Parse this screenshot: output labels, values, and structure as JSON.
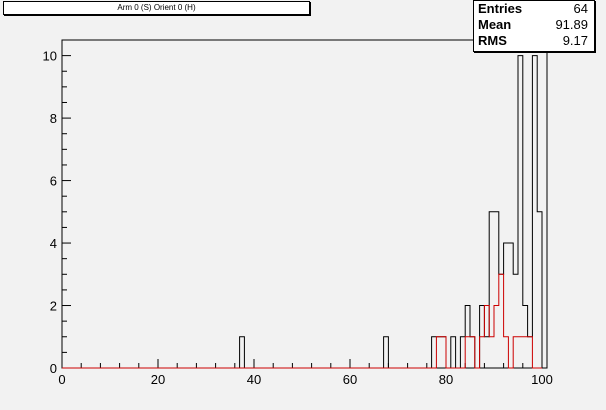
{
  "title": "Arm 0 (S) Orient 0 (H)",
  "stats": {
    "entries_label": "Entries",
    "entries": "64",
    "mean_label": "Mean",
    "mean": "91.89",
    "rms_label": "RMS",
    "rms": "9.17"
  },
  "chart_data": {
    "type": "histogram",
    "title": "Arm 0 (S) Orient 0 (H)",
    "xlim": [
      0,
      100
    ],
    "ylim": [
      0,
      10.5
    ],
    "bin_width": 1,
    "x_ticks": [
      0,
      20,
      40,
      60,
      80,
      100
    ],
    "y_ticks": [
      0,
      2,
      4,
      6,
      8,
      10
    ],
    "grid": false,
    "series": [
      {
        "color": "#000000",
        "bins": [
          [
            37,
            1
          ],
          [
            67,
            1
          ],
          [
            77,
            1
          ],
          [
            78,
            1
          ],
          [
            79,
            1
          ],
          [
            81,
            1
          ],
          [
            83,
            1
          ],
          [
            84,
            2
          ],
          [
            85,
            1
          ],
          [
            87,
            2
          ],
          [
            88,
            1
          ],
          [
            89,
            5
          ],
          [
            90,
            5
          ],
          [
            91,
            3
          ],
          [
            92,
            4
          ],
          [
            93,
            4
          ],
          [
            94,
            3
          ],
          [
            95,
            10
          ],
          [
            96,
            2
          ],
          [
            97,
            1
          ],
          [
            98,
            10
          ],
          [
            99,
            5
          ]
        ]
      },
      {
        "color": "#cc0000",
        "bins": [
          [
            78,
            1
          ],
          [
            79,
            1
          ],
          [
            84,
            1
          ],
          [
            85,
            1
          ],
          [
            87,
            1
          ],
          [
            88,
            2
          ],
          [
            89,
            1
          ],
          [
            90,
            2
          ],
          [
            91,
            3
          ],
          [
            92,
            1
          ],
          [
            94,
            1
          ],
          [
            95,
            1
          ],
          [
            96,
            1
          ],
          [
            97,
            1
          ]
        ]
      }
    ]
  }
}
